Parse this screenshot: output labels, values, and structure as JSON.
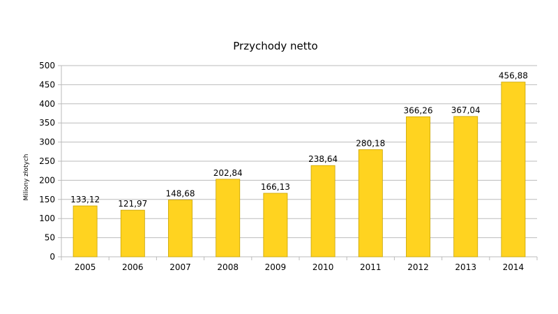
{
  "chart_data": {
    "type": "bar",
    "title": "Przychody netto",
    "xlabel": "",
    "ylabel": "Miliony złotych",
    "categories": [
      "2005",
      "2006",
      "2007",
      "2008",
      "2009",
      "2010",
      "2011",
      "2012",
      "2013",
      "2014"
    ],
    "values": [
      133.12,
      121.97,
      148.68,
      202.84,
      166.13,
      238.64,
      280.18,
      366.26,
      367.04,
      456.88
    ],
    "value_labels": [
      "133,12",
      "121,97",
      "148,68",
      "202,84",
      "166,13",
      "238,64",
      "280,18",
      "366,26",
      "367,04",
      "456,88"
    ],
    "ylim": [
      0,
      500
    ],
    "yticks": [
      "0",
      "50",
      "100",
      "150",
      "200",
      "250",
      "300",
      "350",
      "400",
      "450",
      "500"
    ],
    "grid": true,
    "legend": "none",
    "bar_color": "#FFD320",
    "bar_border_color": "#C9A400",
    "grid_color": "#BBBBBB"
  }
}
